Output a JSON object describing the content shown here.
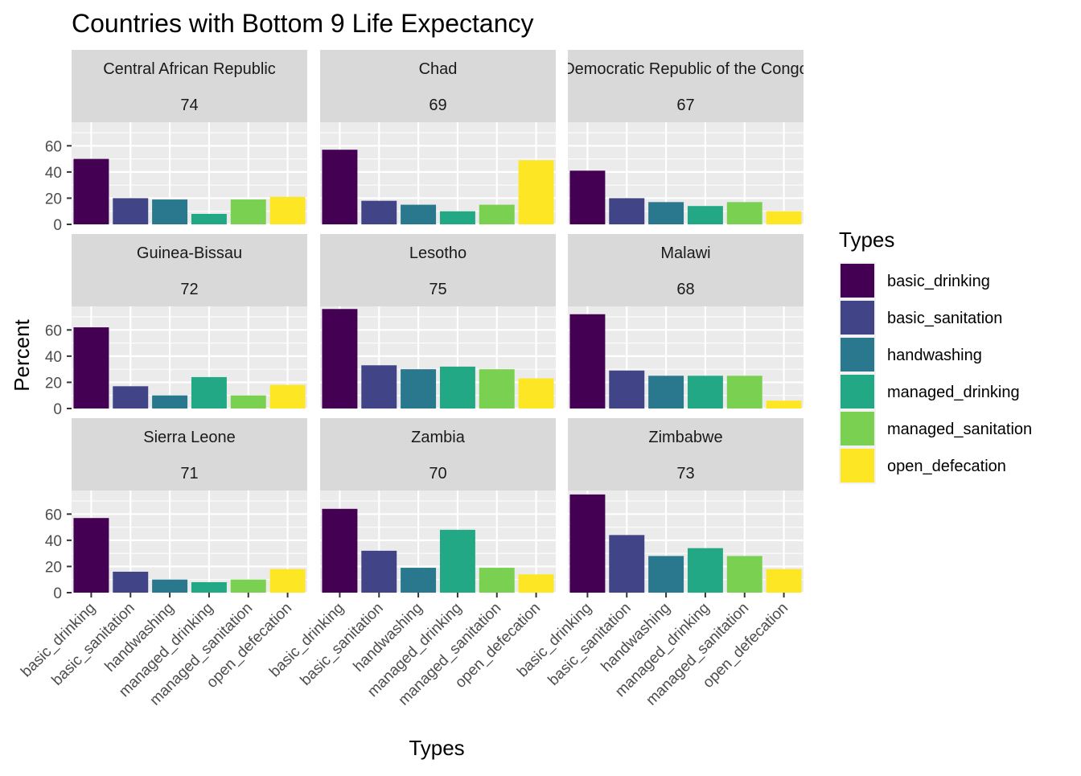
{
  "chart_data": {
    "type": "bar",
    "title": "Countries with Bottom 9 Life Expectancy",
    "xlabel": "Types",
    "ylabel": "Percent",
    "ylim": [
      0,
      78
    ],
    "yticks": [
      0,
      20,
      40,
      60
    ],
    "grid": true,
    "legend": {
      "title": "Types",
      "placement": "right",
      "entries": [
        "basic_drinking",
        "basic_sanitation",
        "handwashing",
        "managed_drinking",
        "managed_sanitation",
        "open_defecation"
      ]
    },
    "categories": [
      "basic_drinking",
      "basic_sanitation",
      "handwashing",
      "managed_drinking",
      "managed_sanitation",
      "open_defecation"
    ],
    "colors": [
      "#440154",
      "#414487",
      "#2A788E",
      "#22A884",
      "#7AD151",
      "#FDE725"
    ],
    "panels": [
      {
        "country": "Central African Republic",
        "value_label": "74",
        "values": [
          50,
          20,
          19,
          8,
          19,
          21
        ]
      },
      {
        "country": "Chad",
        "value_label": "69",
        "values": [
          57,
          18,
          15,
          10,
          15,
          49
        ]
      },
      {
        "country": "Democratic Republic of the Congo",
        "value_label": "67",
        "values": [
          41,
          20,
          17,
          14,
          17,
          10
        ]
      },
      {
        "country": "Guinea-Bissau",
        "value_label": "72",
        "values": [
          62,
          17,
          10,
          24,
          10,
          18
        ]
      },
      {
        "country": "Lesotho",
        "value_label": "75",
        "values": [
          76,
          33,
          30,
          32,
          30,
          23
        ]
      },
      {
        "country": "Malawi",
        "value_label": "68",
        "values": [
          72,
          29,
          25,
          25,
          25,
          6
        ]
      },
      {
        "country": "Sierra Leone",
        "value_label": "71",
        "values": [
          57,
          16,
          10,
          8,
          10,
          18
        ]
      },
      {
        "country": "Zambia",
        "value_label": "70",
        "values": [
          64,
          32,
          19,
          48,
          19,
          14
        ]
      },
      {
        "country": "Zimbabwe",
        "value_label": "73",
        "values": [
          75,
          44,
          28,
          34,
          28,
          18
        ]
      }
    ]
  }
}
